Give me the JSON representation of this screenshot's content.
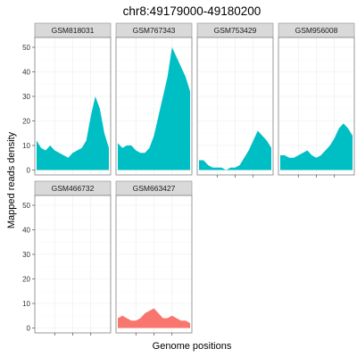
{
  "chart_data": {
    "type": "area",
    "title": "chr8:49179000-49180200",
    "xlabel": "Genome positions",
    "ylabel": "Mapped reads density",
    "ylim": [
      -2,
      54
    ],
    "yticks": [
      0,
      10,
      20,
      30,
      40,
      50
    ],
    "grid": true,
    "colors": {
      "GSM818031": "#00bfc4",
      "GSM767343": "#00bfc4",
      "GSM753429": "#00bfc4",
      "GSM956008": "#00bfc4",
      "GSM466732": "#00bfc4",
      "GSM663427": "#f8766d"
    },
    "x": [
      0,
      1,
      2,
      3,
      4,
      5,
      6,
      7,
      8,
      9,
      10,
      11,
      12,
      13,
      14,
      15,
      16
    ],
    "panels": [
      {
        "name": "GSM818031",
        "values": [
          12,
          9,
          8,
          10,
          8,
          7,
          6,
          5,
          7,
          8,
          9,
          12,
          22,
          30,
          25,
          15,
          9
        ]
      },
      {
        "name": "GSM767343",
        "values": [
          11,
          9,
          10,
          10,
          8,
          7,
          7,
          9,
          14,
          22,
          30,
          38,
          50,
          46,
          42,
          38,
          32
        ]
      },
      {
        "name": "GSM753429",
        "values": [
          4,
          4,
          2,
          1,
          1,
          1,
          0,
          1,
          1,
          2,
          5,
          8,
          12,
          16,
          14,
          12,
          9
        ]
      },
      {
        "name": "GSM956008",
        "values": [
          6,
          6,
          5,
          5,
          6,
          7,
          8,
          6,
          5,
          6,
          8,
          10,
          13,
          17,
          19,
          17,
          14
        ]
      },
      {
        "name": "GSM466732",
        "values": [
          0,
          0,
          0,
          0,
          0,
          0,
          0,
          0,
          0,
          0,
          0,
          0,
          0,
          0,
          0,
          0,
          0
        ]
      },
      {
        "name": "GSM663427",
        "values": [
          4,
          5,
          4,
          3,
          3,
          4,
          6,
          7,
          8,
          6,
          4,
          4,
          5,
          4,
          3,
          3,
          2
        ]
      }
    ]
  }
}
